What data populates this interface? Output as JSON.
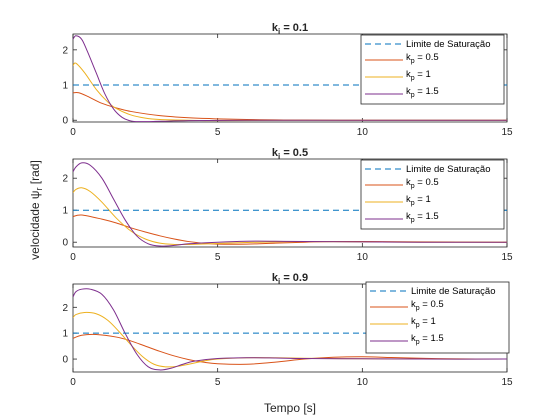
{
  "figure": {
    "ylabel_main": "velocidade ψ",
    "ylabel_sub": "r",
    "ylabel_unit": " [rad]",
    "xlabel": "Tempo [s]"
  },
  "chart_data": [
    {
      "type": "line",
      "title_main": "k",
      "title_sub": "i",
      "title_rest": " = 0.1",
      "xlim": [
        0,
        15
      ],
      "ylim": [
        -0.05,
        2.45
      ],
      "xticks": [
        "0",
        "5",
        "10",
        "15"
      ],
      "yticks": [
        "0",
        "1",
        "2"
      ],
      "xtick_values": [
        0,
        5,
        10,
        15
      ],
      "ytick_values": [
        0,
        1,
        2
      ],
      "legend_position": "top-right",
      "series": [
        {
          "name": "Limite de Saturação",
          "color": "#0072bd",
          "dashed": true,
          "x": [
            0,
            15
          ],
          "y": [
            1.0,
            1.0
          ]
        },
        {
          "name_main": "k",
          "name_sub": "p",
          "name_rest": " = 0.5",
          "color": "#d95319",
          "x": [
            0,
            0.2,
            0.5,
            1,
            1.5,
            2,
            3,
            4,
            5,
            6,
            7,
            8,
            10,
            12,
            15
          ],
          "y": [
            0.78,
            0.78,
            0.68,
            0.48,
            0.35,
            0.25,
            0.13,
            0.07,
            0.04,
            0.02,
            0.01,
            0.005,
            0.0,
            0.0,
            0.0
          ]
        },
        {
          "name_main": "k",
          "name_sub": "p",
          "name_rest": " = 1",
          "color": "#edb120",
          "x": [
            0,
            0.1,
            0.4,
            0.8,
            1.2,
            1.5,
            2,
            2.5,
            3,
            4,
            5,
            7,
            10,
            15
          ],
          "y": [
            1.55,
            1.62,
            1.35,
            0.88,
            0.52,
            0.33,
            0.15,
            0.06,
            0.02,
            0.0,
            -0.01,
            -0.005,
            0.0,
            0.0
          ]
        },
        {
          "name_main": "k",
          "name_sub": "p",
          "name_rest": " = 1.5",
          "color": "#7e2f8e",
          "x": [
            0,
            0.1,
            0.3,
            0.5,
            0.8,
            1.1,
            1.4,
            1.7,
            2,
            2.3,
            3,
            4,
            6,
            10,
            15
          ],
          "y": [
            2.3,
            2.4,
            2.3,
            1.95,
            1.35,
            0.75,
            0.32,
            0.08,
            -0.02,
            -0.04,
            -0.03,
            -0.01,
            0.0,
            0.0,
            0.0
          ]
        }
      ]
    },
    {
      "type": "line",
      "title_main": "k",
      "title_sub": "i",
      "title_rest": " = 0.5",
      "xlim": [
        0,
        15
      ],
      "ylim": [
        -0.15,
        2.6
      ],
      "xticks": [
        "0",
        "5",
        "10",
        "15"
      ],
      "yticks": [
        "0",
        "1",
        "2"
      ],
      "xtick_values": [
        0,
        5,
        10,
        15
      ],
      "ytick_values": [
        0,
        1,
        2
      ],
      "legend_position": "top-right",
      "series": [
        {
          "name": "Limite de Saturação",
          "color": "#0072bd",
          "dashed": true,
          "x": [
            0,
            15
          ],
          "y": [
            1.0,
            1.0
          ]
        },
        {
          "name_main": "k",
          "name_sub": "p",
          "name_rest": " = 0.5",
          "color": "#d95319",
          "x": [
            0,
            0.3,
            1,
            1.5,
            2,
            2.5,
            3,
            3.5,
            4,
            4.5,
            5,
            6,
            7,
            8,
            9,
            10,
            12,
            15
          ],
          "y": [
            0.8,
            0.85,
            0.72,
            0.6,
            0.45,
            0.32,
            0.2,
            0.1,
            0.02,
            -0.03,
            -0.06,
            -0.06,
            -0.03,
            0.0,
            0.02,
            0.02,
            0.01,
            0.0
          ]
        },
        {
          "name_main": "k",
          "name_sub": "p",
          "name_rest": " = 1",
          "color": "#edb120",
          "x": [
            0,
            0.1,
            0.3,
            0.6,
            1,
            1.5,
            2,
            2.5,
            3,
            3.5,
            4,
            5,
            6,
            7,
            8,
            10,
            12,
            15
          ],
          "y": [
            1.55,
            1.65,
            1.7,
            1.58,
            1.25,
            0.75,
            0.35,
            0.1,
            -0.03,
            -0.07,
            -0.07,
            -0.04,
            -0.01,
            0.01,
            0.02,
            0.01,
            0.0,
            0.0
          ]
        },
        {
          "name_main": "k",
          "name_sub": "p",
          "name_rest": " = 1.5",
          "color": "#7e2f8e",
          "x": [
            0,
            0.1,
            0.3,
            0.6,
            1,
            1.4,
            1.8,
            2.2,
            2.6,
            3,
            3.5,
            4,
            5,
            6,
            7,
            8,
            10,
            12,
            15
          ],
          "y": [
            2.2,
            2.35,
            2.48,
            2.4,
            2.0,
            1.35,
            0.7,
            0.2,
            -0.05,
            -0.12,
            -0.1,
            -0.05,
            0.0,
            0.03,
            0.03,
            0.02,
            0.01,
            0.0,
            0.0
          ]
        }
      ]
    },
    {
      "type": "line",
      "title_main": "k",
      "title_sub": "i",
      "title_rest": " = 0.9",
      "xlim": [
        0,
        15
      ],
      "ylim": [
        -0.5,
        2.9
      ],
      "xticks": [
        "0",
        "5",
        "10",
        "15"
      ],
      "yticks": [
        "0",
        "1",
        "2"
      ],
      "xtick_values": [
        0,
        5,
        10,
        15
      ],
      "ytick_values": [
        0,
        1,
        2
      ],
      "legend_position": "top-right",
      "series": [
        {
          "name": "Limite de Saturação",
          "color": "#0072bd",
          "dashed": true,
          "x": [
            0,
            15
          ],
          "y": [
            1.0,
            1.0
          ]
        },
        {
          "name_main": "k",
          "name_sub": "p",
          "name_rest": " = 0.5",
          "color": "#d95319",
          "x": [
            0,
            0.3,
            0.8,
            1.5,
            2,
            2.5,
            3,
            3.5,
            4,
            4.5,
            5,
            6,
            7,
            8,
            9,
            10,
            11,
            12,
            13,
            15
          ],
          "y": [
            0.8,
            0.92,
            0.95,
            0.85,
            0.7,
            0.5,
            0.3,
            0.12,
            -0.02,
            -0.12,
            -0.18,
            -0.2,
            -0.12,
            0.0,
            0.07,
            0.09,
            0.06,
            0.03,
            0.01,
            0.0
          ]
        },
        {
          "name_main": "k",
          "name_sub": "p",
          "name_rest": " = 1",
          "color": "#edb120",
          "x": [
            0,
            0.1,
            0.4,
            0.8,
            1.2,
            1.6,
            2,
            2.4,
            2.8,
            3.2,
            3.6,
            4,
            4.5,
            5,
            6,
            7,
            8,
            10,
            12,
            15
          ],
          "y": [
            1.6,
            1.72,
            1.8,
            1.75,
            1.5,
            1.05,
            0.55,
            0.1,
            -0.2,
            -0.3,
            -0.28,
            -0.2,
            -0.08,
            0.0,
            0.05,
            0.05,
            0.03,
            0.01,
            0.0,
            0.0
          ]
        },
        {
          "name_main": "k",
          "name_sub": "p",
          "name_rest": " = 1.5",
          "color": "#7e2f8e",
          "x": [
            0,
            0.1,
            0.3,
            0.6,
            1,
            1.4,
            1.8,
            2.2,
            2.6,
            3,
            3.4,
            3.8,
            4.2,
            5,
            6,
            7,
            8,
            10,
            12,
            15
          ],
          "y": [
            2.4,
            2.6,
            2.7,
            2.7,
            2.5,
            1.9,
            1.0,
            0.2,
            -0.3,
            -0.42,
            -0.35,
            -0.2,
            -0.08,
            0.02,
            0.05,
            0.04,
            0.02,
            0.01,
            0.0,
            0.0
          ]
        }
      ]
    }
  ]
}
